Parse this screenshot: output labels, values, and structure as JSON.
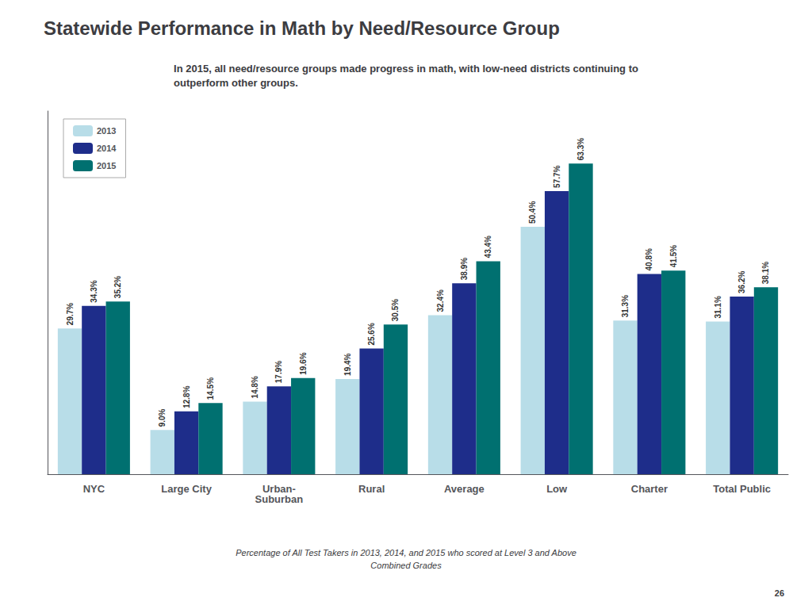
{
  "chart_data": {
    "type": "bar",
    "title": "Statewide Performance in Math by Need/Resource Group",
    "subtitle": "In 2015, all need/resource groups made progress in math, with low-need districts continuing to\noutperform other groups.",
    "annotations": [
      "Percentage of All Test Takers in 2013, 2014, and 2015 who scored at Level 3 and Above\nCombined Grades",
      "26"
    ],
    "categories": [
      "NYC",
      "Large City",
      "Urban-\nSuburban",
      "Rural",
      "Average",
      "Low",
      "Charter",
      "Total Public"
    ],
    "series": [
      {
        "name": "2013",
        "color": "#b8dde8",
        "values": [
          29.7,
          9.0,
          14.8,
          19.4,
          32.4,
          50.4,
          31.3,
          31.1
        ],
        "value_labels": [
          "29.7%",
          "9.0%",
          "14.8%",
          "19.4%",
          "32.4%",
          "50.4%",
          "31.3%",
          "31.1%"
        ]
      },
      {
        "name": "2014",
        "color": "#1e2d8a",
        "values": [
          34.3,
          12.8,
          17.9,
          25.6,
          38.9,
          57.7,
          40.8,
          36.2
        ],
        "value_labels": [
          "34.3%",
          "12.8%",
          "17.9%",
          "25.6%",
          "38.9%",
          "57.7%",
          "40.8%",
          "36.2%"
        ]
      },
      {
        "name": "2015",
        "color": "#007070",
        "values": [
          35.2,
          14.5,
          19.6,
          30.5,
          43.4,
          63.3,
          41.5,
          38.1
        ],
        "value_labels": [
          "35.2%",
          "14.5%",
          "19.6%",
          "30.5%",
          "43.4%",
          "63.3%",
          "41.5%",
          "38.1%"
        ]
      }
    ],
    "ylim": [
      0,
      74
    ],
    "grid": false,
    "legend": "upper left",
    "data_labels": true,
    "tick_labels": "x"
  }
}
